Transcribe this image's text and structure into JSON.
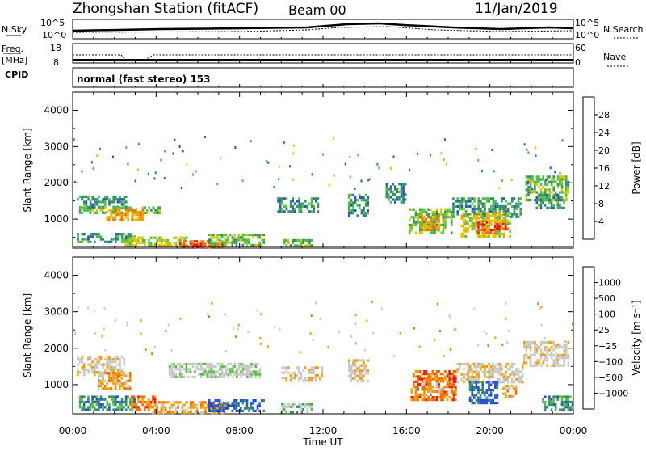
{
  "header": {
    "station": "Zhongshan Station (fitACF)",
    "beam": "Beam 00",
    "date": "11/Jan/2019"
  },
  "strip_labels": {
    "nsky": "N.Sky",
    "nsky_top": "10^5",
    "nsky_bottom": "10^0",
    "nsearch": "N.Search",
    "nsearch_top": "10^5",
    "nsearch_bottom": "10^0",
    "freq_line1": "Freq.",
    "freq_line2": "[MHz]",
    "freq_top": "18",
    "freq_bottom": "8",
    "nave": "Nave",
    "nave_top": "60",
    "nave_bottom": "0",
    "cpid": "CPID",
    "mode": "normal (fast stereo) 153"
  },
  "colors": {
    "power": [
      "#1f3cf5",
      "#2855b8",
      "#2f8f6a",
      "#55c040",
      "#d8c800",
      "#f2a000",
      "#f26d00",
      "#e81818"
    ],
    "velocity": [
      "#e81818",
      "#f26d00",
      "#f2a000",
      "#c8c8c8",
      "#c8c8c8",
      "#55c040",
      "#2f8f6a",
      "#2855b8",
      "#1f3cf5"
    ]
  },
  "chart_data": [
    {
      "type": "heatmap",
      "panel": "power",
      "ylabel": "Slant Range [km]",
      "y_ticks": [
        "1000",
        "2000",
        "3000",
        "4000"
      ],
      "ylim": [
        200,
        4500
      ],
      "xlim_hours": [
        0,
        24
      ],
      "colorbar_label": "Power [dB]",
      "colorbar_ticks": [
        "4",
        "8",
        "12",
        "16",
        "20",
        "24",
        "28"
      ],
      "blobs": [
        {
          "t0": 0.2,
          "t1": 2.6,
          "r0": 1300,
          "r1": 1650,
          "lvl": 2
        },
        {
          "t0": 0.3,
          "t1": 4.2,
          "r0": 1150,
          "r1": 1350,
          "lvl": 3
        },
        {
          "t0": 1.6,
          "t1": 3.4,
          "r0": 950,
          "r1": 1300,
          "lvl": 5
        },
        {
          "t0": 0.2,
          "t1": 3.0,
          "r0": 380,
          "r1": 620,
          "lvl": 2
        },
        {
          "t0": 2.5,
          "t1": 5.5,
          "r0": 300,
          "r1": 520,
          "lvl": 4
        },
        {
          "t0": 5.0,
          "t1": 7.2,
          "r0": 220,
          "r1": 420,
          "lvl": 6
        },
        {
          "t0": 5.8,
          "t1": 6.8,
          "r0": 220,
          "r1": 330,
          "lvl": 7
        },
        {
          "t0": 6.5,
          "t1": 9.2,
          "r0": 300,
          "r1": 600,
          "lvl": 3
        },
        {
          "t0": 9.8,
          "t1": 11.9,
          "r0": 1200,
          "r1": 1600,
          "lvl": 2
        },
        {
          "t0": 10.1,
          "t1": 11.5,
          "r0": 250,
          "r1": 450,
          "lvl": 3
        },
        {
          "t0": 13.2,
          "t1": 14.2,
          "r0": 1100,
          "r1": 1700,
          "lvl": 2
        },
        {
          "t0": 15.0,
          "t1": 16.0,
          "r0": 1500,
          "r1": 2000,
          "lvl": 2
        },
        {
          "t0": 16.1,
          "t1": 18.2,
          "r0": 650,
          "r1": 1300,
          "lvl": 3
        },
        {
          "t0": 16.7,
          "t1": 17.6,
          "r0": 700,
          "r1": 1100,
          "lvl": 5
        },
        {
          "t0": 18.2,
          "t1": 21.5,
          "r0": 1100,
          "r1": 1600,
          "lvl": 2
        },
        {
          "t0": 18.6,
          "t1": 21.0,
          "r0": 500,
          "r1": 1200,
          "lvl": 4
        },
        {
          "t0": 19.4,
          "t1": 20.4,
          "r0": 650,
          "r1": 950,
          "lvl": 6
        },
        {
          "t0": 20.2,
          "t1": 20.9,
          "r0": 700,
          "r1": 900,
          "lvl": 7
        },
        {
          "t0": 21.7,
          "t1": 23.8,
          "r0": 1500,
          "r1": 2200,
          "lvl": 3
        },
        {
          "t0": 22.2,
          "t1": 23.6,
          "r0": 1300,
          "r1": 1700,
          "lvl": 2
        }
      ]
    },
    {
      "type": "heatmap",
      "panel": "velocity",
      "ylabel": "Slant Range [km]",
      "y_ticks": [
        "1000",
        "2000",
        "3000",
        "4000"
      ],
      "ylim": [
        200,
        4500
      ],
      "xlim_hours": [
        0,
        24
      ],
      "colorbar_label": "Velocity [m s⁻¹]",
      "colorbar_ticks": [
        "1000",
        "500",
        "100",
        "25",
        "−25",
        "−100",
        "−500",
        "−1000"
      ],
      "blobs": [
        {
          "t0": 0.2,
          "t1": 2.5,
          "r0": 1300,
          "r1": 1800,
          "lvl": 3
        },
        {
          "t0": 1.2,
          "t1": 2.8,
          "r0": 900,
          "r1": 1350,
          "lvl": 2
        },
        {
          "t0": 0.3,
          "t1": 3.0,
          "r0": 300,
          "r1": 700,
          "lvl": 6
        },
        {
          "t0": 2.8,
          "t1": 4.0,
          "r0": 300,
          "r1": 700,
          "lvl": 1
        },
        {
          "t0": 3.8,
          "t1": 7.5,
          "r0": 250,
          "r1": 550,
          "lvl": 2
        },
        {
          "t0": 6.5,
          "t1": 9.2,
          "r0": 250,
          "r1": 600,
          "lvl": 7
        },
        {
          "t0": 4.6,
          "t1": 9.0,
          "r0": 1200,
          "r1": 1600,
          "lvl": 4
        },
        {
          "t0": 10.0,
          "t1": 12.0,
          "r0": 1100,
          "r1": 1500,
          "lvl": 3
        },
        {
          "t0": 10.0,
          "t1": 11.5,
          "r0": 250,
          "r1": 500,
          "lvl": 5
        },
        {
          "t0": 13.2,
          "t1": 14.2,
          "r0": 1100,
          "r1": 1700,
          "lvl": 3
        },
        {
          "t0": 16.2,
          "t1": 18.4,
          "r0": 600,
          "r1": 1400,
          "lvl": 1
        },
        {
          "t0": 16.8,
          "t1": 17.8,
          "r0": 800,
          "r1": 1200,
          "lvl": 2
        },
        {
          "t0": 18.4,
          "t1": 21.6,
          "r0": 1100,
          "r1": 1600,
          "lvl": 3
        },
        {
          "t0": 19.0,
          "t1": 20.4,
          "r0": 500,
          "r1": 1100,
          "lvl": 7
        },
        {
          "t0": 20.6,
          "t1": 21.3,
          "r0": 700,
          "r1": 1000,
          "lvl": 2
        },
        {
          "t0": 21.6,
          "t1": 23.8,
          "r0": 1500,
          "r1": 2200,
          "lvl": 3
        },
        {
          "t0": 22.5,
          "t1": 24.0,
          "r0": 300,
          "r1": 700,
          "lvl": 6
        }
      ]
    }
  ],
  "time_axis": {
    "label": "Time UT",
    "ticks": [
      "00:00",
      "04:00",
      "08:00",
      "12:00",
      "16:00",
      "20:00",
      "00:00"
    ]
  }
}
